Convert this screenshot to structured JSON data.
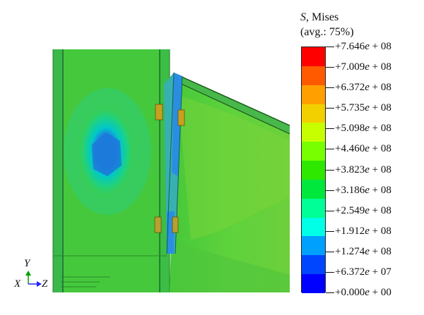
{
  "legend": {
    "variable": "S",
    "variable_suffix": ", Mises",
    "averaging": "(avg.: 75%)",
    "colors": [
      "#ff0000",
      "#ff5a00",
      "#ffa000",
      "#f2d000",
      "#c8ff00",
      "#78ff00",
      "#2ee800",
      "#00e83c",
      "#00ff96",
      "#00ffe6",
      "#00a0ff",
      "#0046ff",
      "#0000ff"
    ],
    "ticks": [
      {
        "mantissa": "+7.646",
        "exp": " + 08"
      },
      {
        "mantissa": "+7.009",
        "exp": " + 08"
      },
      {
        "mantissa": "+6.372",
        "exp": " + 08"
      },
      {
        "mantissa": "+5.735",
        "exp": " + 08"
      },
      {
        "mantissa": "+5.098",
        "exp": " + 08"
      },
      {
        "mantissa": "+4.460",
        "exp": " + 08"
      },
      {
        "mantissa": "+3.823",
        "exp": " + 08"
      },
      {
        "mantissa": "+3.186",
        "exp": " + 08"
      },
      {
        "mantissa": "+2.549",
        "exp": " + 08"
      },
      {
        "mantissa": "+1.912",
        "exp": " + 08"
      },
      {
        "mantissa": "+1.274",
        "exp": " + 08"
      },
      {
        "mantissa": "+6.372",
        "exp": " + 07"
      },
      {
        "mantissa": "+0.000",
        "exp": " + 00"
      }
    ],
    "exp_symbol": "e"
  },
  "triad": {
    "y_label": "Y",
    "x_label": "X",
    "z_label": "Z",
    "arrow_color": "#00a000",
    "z_arrow_color": "#2020ff"
  }
}
